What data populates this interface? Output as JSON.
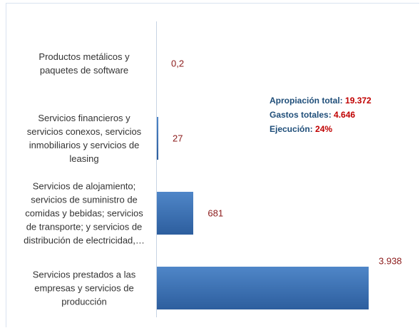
{
  "chart_data": {
    "type": "bar",
    "orientation": "horizontal",
    "categories": [
      "Productos metálicos y\npaquetes de software",
      "Servicios financieros y\nservicios conexos, servicios\ninmobiliarios y servicios de\nleasing",
      "Servicios de alojamiento;\nservicios de suministro de\ncomidas y bebidas; servicios\nde transporte; y servicios de\ndistribución de electricidad,…",
      "Servicios prestados a las\nempresas y servicios de\nproducción"
    ],
    "values": [
      0.2,
      27,
      681,
      3938
    ],
    "value_labels": [
      "0,2",
      "27",
      "681",
      "3.938"
    ],
    "color": "#3a6db0",
    "annotations": [
      {
        "label": "Apropiación total:",
        "value": "19.372"
      },
      {
        "label": "Gastos totales:",
        "value": "4.646"
      },
      {
        "label": "Ejecución:",
        "value": "24%"
      }
    ]
  }
}
